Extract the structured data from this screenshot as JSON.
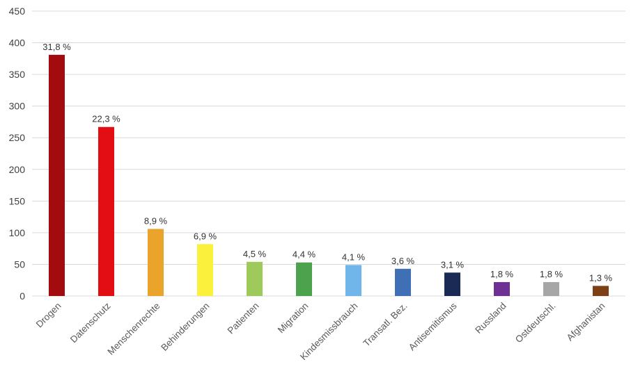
{
  "chart_data": {
    "type": "bar",
    "title": "",
    "xlabel": "",
    "ylabel": "",
    "categories": [
      "Drogen",
      "Datenschutz",
      "Menschenrechte",
      "Behinderungen",
      "Patienten",
      "Migration",
      "Kindesmissbrauch",
      "Transatl. Bez.",
      "Antisemitismus",
      "Russland",
      "Ostdeutschl.",
      "Afghanistan"
    ],
    "values": [
      381,
      267,
      106,
      82,
      54,
      53,
      49,
      43,
      37,
      22,
      22,
      16
    ],
    "value_labels": [
      "31,8 %",
      "22,3 %",
      "8,9 %",
      "6,9 %",
      "4,5 %",
      "4,4 %",
      "4,1 %",
      "3,6 %",
      "3,1 %",
      "1,8 %",
      "1,8 %",
      "1,3 %"
    ],
    "bar_colors": [
      "#A30C0F",
      "#E30E13",
      "#EBA42B",
      "#FBF13D",
      "#9DCA5B",
      "#4DA34D",
      "#70B6EA",
      "#3F6FB5",
      "#1B2A55",
      "#6F3094",
      "#A6A6A6",
      "#7D4016"
    ],
    "ylim": [
      0,
      450
    ],
    "ytick_step": 50,
    "ytick_labels": [
      "0",
      "50",
      "100",
      "150",
      "200",
      "250",
      "300",
      "350",
      "400",
      "450"
    ],
    "grid": true,
    "legend_position": "none",
    "gridline_color": "#D9D9D9",
    "tick_label_color": "#404040",
    "value_label_color": "#333333",
    "category_label_color": "#595959",
    "background_color": "#FFFFFF"
  }
}
